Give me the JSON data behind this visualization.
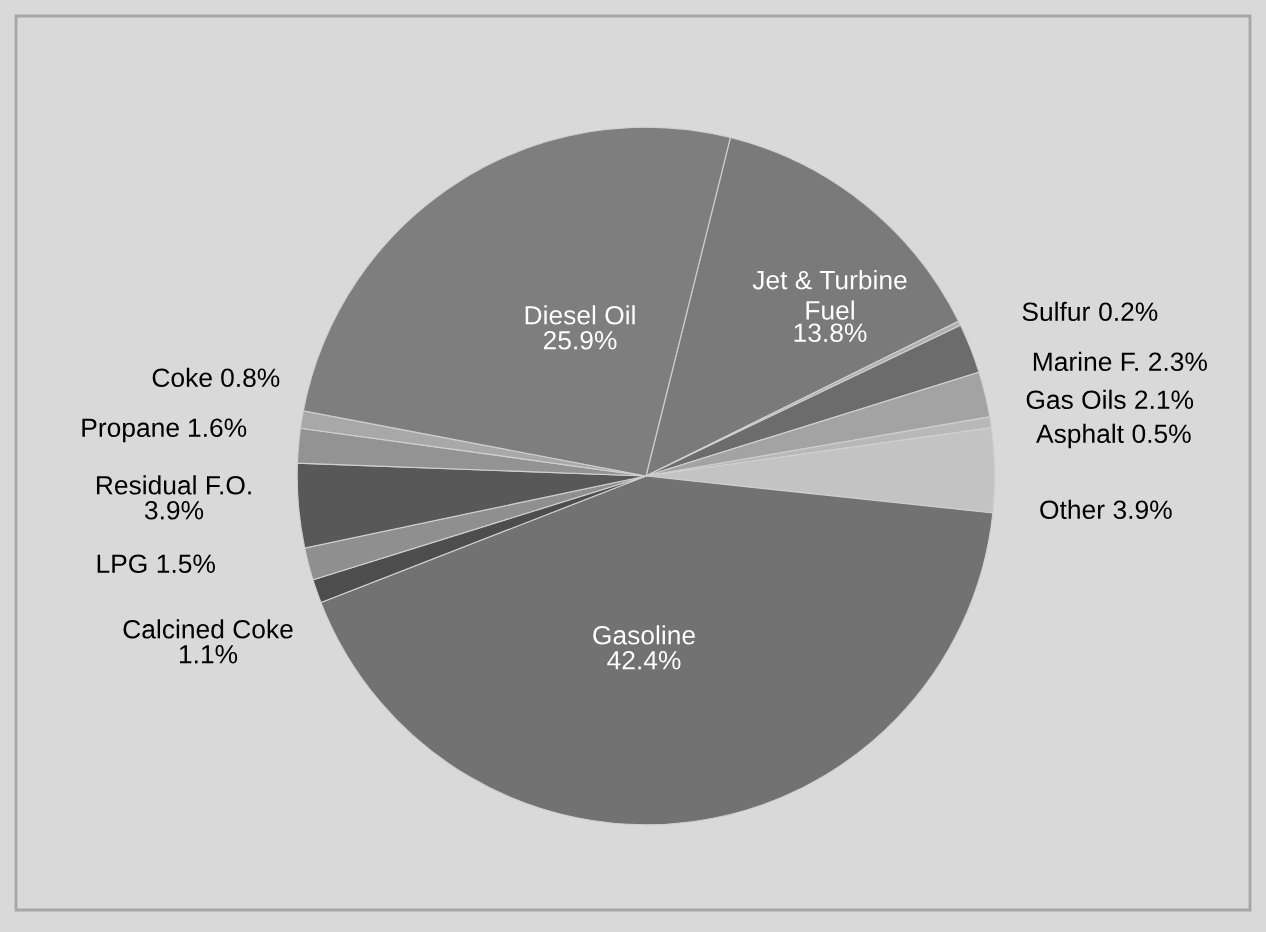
{
  "chart_data": {
    "type": "pie",
    "categories": [
      "Jet & Turbine Fuel",
      "Sulfur",
      "Marine F.",
      "Gas Oils",
      "Asphalt",
      "Other",
      "Gasoline",
      "Calcined Coke",
      "LPG",
      "Residual F.O.",
      "Propane",
      "Coke",
      "Diesel Oil"
    ],
    "values": [
      13.8,
      0.2,
      2.3,
      2.1,
      0.5,
      3.9,
      42.4,
      1.1,
      1.5,
      3.9,
      1.6,
      0.8,
      25.9
    ],
    "colors": [
      "#7a7a7a",
      "#b0b0b0",
      "#6c6c6c",
      "#a3a3a3",
      "#b8b8b8",
      "#c3c3c3",
      "#727272",
      "#4d4d4d",
      "#8f8f8f",
      "#585858",
      "#939393",
      "#a8a8a8",
      "#7e7e7e"
    ],
    "value_labels": [
      "13.8%",
      "0.2%",
      "2.3%",
      "2.1%",
      "0.5%",
      "3.9%",
      "42.4%",
      "1.1%",
      "1.5%",
      "3.9%",
      "1.6%",
      "0.8%",
      "25.9%"
    ]
  }
}
